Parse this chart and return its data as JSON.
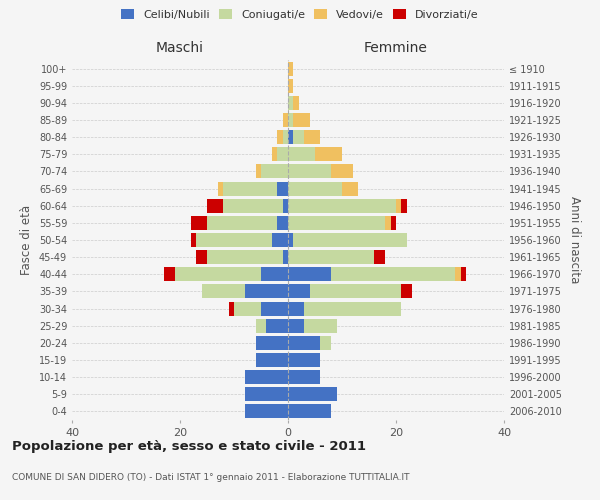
{
  "age_groups": [
    "0-4",
    "5-9",
    "10-14",
    "15-19",
    "20-24",
    "25-29",
    "30-34",
    "35-39",
    "40-44",
    "45-49",
    "50-54",
    "55-59",
    "60-64",
    "65-69",
    "70-74",
    "75-79",
    "80-84",
    "85-89",
    "90-94",
    "95-99",
    "100+"
  ],
  "birth_years": [
    "2006-2010",
    "2001-2005",
    "1996-2000",
    "1991-1995",
    "1986-1990",
    "1981-1985",
    "1976-1980",
    "1971-1975",
    "1966-1970",
    "1961-1965",
    "1956-1960",
    "1951-1955",
    "1946-1950",
    "1941-1945",
    "1936-1940",
    "1931-1935",
    "1926-1930",
    "1921-1925",
    "1916-1920",
    "1911-1915",
    "≤ 1910"
  ],
  "colors": {
    "celibi": "#4472c4",
    "coniugati": "#c5d9a0",
    "vedovi": "#f0c060",
    "divorziati": "#cc0000"
  },
  "males": {
    "celibi": [
      8,
      8,
      8,
      6,
      6,
      4,
      5,
      8,
      5,
      1,
      3,
      2,
      1,
      2,
      0,
      0,
      0,
      0,
      0,
      0,
      0
    ],
    "coniugati": [
      0,
      0,
      0,
      0,
      0,
      2,
      5,
      8,
      16,
      14,
      14,
      13,
      11,
      10,
      5,
      2,
      1,
      0,
      0,
      0,
      0
    ],
    "vedovi": [
      0,
      0,
      0,
      0,
      0,
      0,
      0,
      0,
      0,
      0,
      0,
      0,
      0,
      1,
      1,
      1,
      1,
      1,
      0,
      0,
      0
    ],
    "divorziati": [
      0,
      0,
      0,
      0,
      0,
      0,
      1,
      0,
      2,
      2,
      1,
      3,
      3,
      0,
      0,
      0,
      0,
      0,
      0,
      0,
      0
    ]
  },
  "females": {
    "celibi": [
      8,
      9,
      6,
      6,
      6,
      3,
      3,
      4,
      8,
      0,
      1,
      0,
      0,
      0,
      0,
      0,
      1,
      0,
      0,
      0,
      0
    ],
    "coniugati": [
      0,
      0,
      0,
      0,
      2,
      6,
      18,
      17,
      23,
      16,
      21,
      18,
      20,
      10,
      8,
      5,
      2,
      1,
      1,
      0,
      0
    ],
    "vedovi": [
      0,
      0,
      0,
      0,
      0,
      0,
      0,
      0,
      1,
      0,
      0,
      1,
      1,
      3,
      4,
      5,
      3,
      3,
      1,
      1,
      1
    ],
    "divorziati": [
      0,
      0,
      0,
      0,
      0,
      0,
      0,
      2,
      1,
      2,
      0,
      1,
      1,
      0,
      0,
      0,
      0,
      0,
      0,
      0,
      0
    ]
  },
  "title": "Popolazione per età, sesso e stato civile - 2011",
  "subtitle": "COMUNE DI SAN DIDERO (TO) - Dati ISTAT 1° gennaio 2011 - Elaborazione TUTTITALIA.IT",
  "ylabel_left": "Fasce di età",
  "ylabel_right": "Anni di nascita",
  "xlabel_left": "Maschi",
  "xlabel_right": "Femmine",
  "xlim": 40,
  "legend_labels": [
    "Celibi/Nubili",
    "Coniugati/e",
    "Vedovi/e",
    "Divorziati/e"
  ],
  "background_color": "#f5f5f5"
}
